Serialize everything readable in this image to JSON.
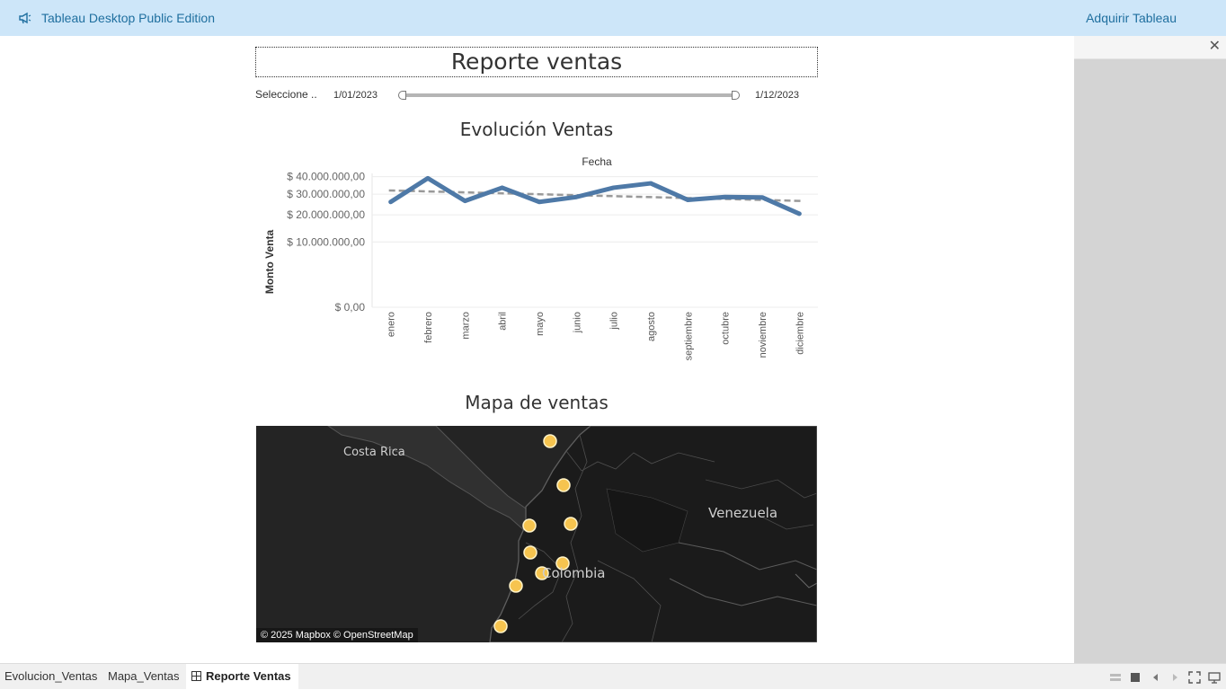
{
  "topbar": {
    "title": "Tableau Desktop Public Edition",
    "acquire_label": "Adquirir Tableau"
  },
  "dashboard": {
    "title": "Reporte ventas",
    "filter": {
      "label": "Seleccione ..",
      "min_value": "1/01/2023",
      "max_value": "1/12/2023"
    }
  },
  "chart": {
    "title": "Evolución Ventas"
  },
  "chart_data": {
    "type": "line",
    "title": "Evolución Ventas",
    "xlabel": "Fecha",
    "ylabel": "Monto Venta",
    "categories": [
      "enero",
      "febrero",
      "marzo",
      "abril",
      "mayo",
      "junio",
      "julio",
      "agosto",
      "septiembre",
      "octubre",
      "noviembre",
      "diciembre"
    ],
    "series": [
      {
        "values": [
          26000000,
          39000000,
          26500000,
          33500000,
          26000000,
          28500000,
          33500000,
          36000000,
          27000000,
          28500000,
          28300000,
          20500000
        ],
        "color": "#4e79a7"
      }
    ],
    "trendline": {
      "start": 32000000,
      "end": 26500000,
      "color": "#999999",
      "style": "dashed"
    },
    "yticks": [
      {
        "value": 0,
        "label": "$ 0,00"
      },
      {
        "value": 10000000,
        "label": "$ 10.000.000,00"
      },
      {
        "value": 20000000,
        "label": "$ 20.000.000,00"
      },
      {
        "value": 30000000,
        "label": "$ 30.000.000,00"
      },
      {
        "value": 40000000,
        "label": "$ 40.000.000,00"
      }
    ],
    "ylim": [
      0,
      42000000
    ],
    "yscale": "sqrt",
    "grid": true
  },
  "map": {
    "title": "Mapa de ventas",
    "labels": {
      "costa_rica": "Costa Rica",
      "venezuela": "Venezuela",
      "colombia": "Colombia"
    },
    "attribution": "© 2025 Mapbox © OpenStreetMap",
    "marker_color": "#f6c44f",
    "marker_count": 10
  },
  "tabs": [
    {
      "label": "Evolucion_Ventas",
      "active": false
    },
    {
      "label": "Mapa_Ventas",
      "active": false
    },
    {
      "label": "Reporte Ventas",
      "active": true
    }
  ]
}
